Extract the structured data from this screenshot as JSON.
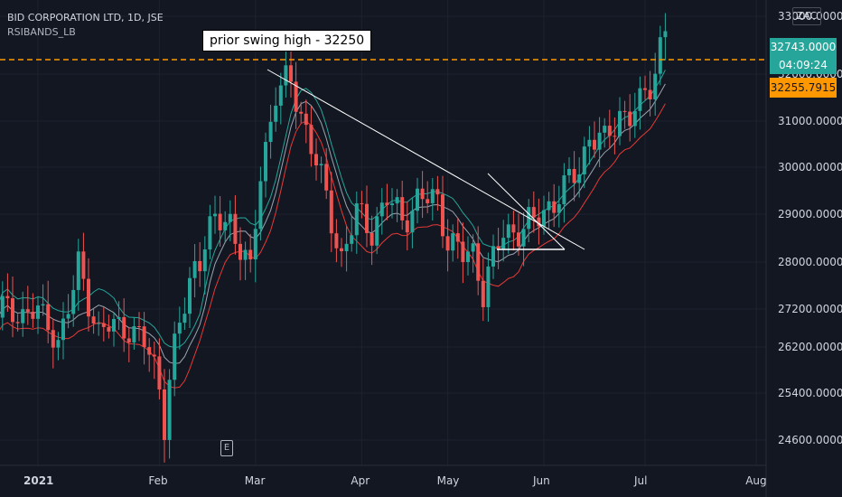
{
  "header": {
    "title": "BID CORPORATION LTD, 1D, JSE",
    "indicator": "RSIBANDS_LB"
  },
  "annotation": {
    "text": "prior swing high - 32250"
  },
  "price_scale": {
    "currency": "ZAC",
    "last_price": "32743.0000",
    "countdown": "04:09:24",
    "level_label": "32255.7915"
  },
  "event_marker": {
    "label": "E"
  },
  "colors": {
    "background": "#131722",
    "up": "#26a69a",
    "down": "#ef5350",
    "band_upper": "#26a69a",
    "band_mid": "#9aa4b0",
    "band_lower": "#e53935",
    "level_line": "#ff9800",
    "trendline": "#ffffff",
    "grid": "#1e222d",
    "axis_text": "#d1d4dc"
  },
  "chart_data": {
    "type": "candlestick",
    "title": "BID CORPORATION LTD, 1D, JSE",
    "y_ticks": [
      24600,
      25400,
      26200,
      27200,
      28000,
      29000,
      30000,
      31000,
      32000,
      33000
    ],
    "y_tick_labels": [
      "24600.0000",
      "25400.0000",
      "26200.0000",
      "27200.0000",
      "28000.0000",
      "29000.0000",
      "30000.0000",
      "31000.0000",
      "32000.0000",
      "33000.0000"
    ],
    "x_ticks": [
      {
        "label": "2021",
        "x": 0
      },
      {
        "label": "Feb",
        "x": 24
      },
      {
        "label": "Mar",
        "x": 43
      },
      {
        "label": "Apr",
        "x": 64
      },
      {
        "label": "May",
        "x": 81
      },
      {
        "label": "Jun",
        "x": 100
      },
      {
        "label": "Jul",
        "x": 120
      },
      {
        "label": "Aug",
        "x": 142
      }
    ],
    "horizontal_level": 32250,
    "close_series_approx": [
      {
        "x": 0,
        "y": 27100
      },
      {
        "x": 4,
        "y": 26400
      },
      {
        "x": 8,
        "y": 27900
      },
      {
        "x": 10,
        "y": 27400
      },
      {
        "x": 12,
        "y": 26600
      },
      {
        "x": 16,
        "y": 26800
      },
      {
        "x": 20,
        "y": 26500
      },
      {
        "x": 24,
        "y": 25600
      },
      {
        "x": 25,
        "y": 25000
      },
      {
        "x": 28,
        "y": 26800
      },
      {
        "x": 31,
        "y": 28000
      },
      {
        "x": 35,
        "y": 28800
      },
      {
        "x": 38,
        "y": 28900
      },
      {
        "x": 42,
        "y": 27700
      },
      {
        "x": 44,
        "y": 29900
      },
      {
        "x": 47,
        "y": 31600
      },
      {
        "x": 50,
        "y": 31800
      },
      {
        "x": 52,
        "y": 31200
      },
      {
        "x": 55,
        "y": 30100
      },
      {
        "x": 58,
        "y": 28900
      },
      {
        "x": 60,
        "y": 28100
      },
      {
        "x": 63,
        "y": 29000
      },
      {
        "x": 66,
        "y": 28700
      },
      {
        "x": 69,
        "y": 29300
      },
      {
        "x": 72,
        "y": 28900
      },
      {
        "x": 75,
        "y": 29300
      },
      {
        "x": 79,
        "y": 29300
      },
      {
        "x": 81,
        "y": 28500
      },
      {
        "x": 84,
        "y": 28100
      },
      {
        "x": 86,
        "y": 28200
      },
      {
        "x": 88,
        "y": 27600
      },
      {
        "x": 90,
        "y": 28000
      },
      {
        "x": 92,
        "y": 28600
      },
      {
        "x": 95,
        "y": 28700
      },
      {
        "x": 98,
        "y": 28800
      },
      {
        "x": 101,
        "y": 29200
      },
      {
        "x": 104,
        "y": 29500
      },
      {
        "x": 107,
        "y": 30000
      },
      {
        "x": 109,
        "y": 30700
      },
      {
        "x": 112,
        "y": 30500
      },
      {
        "x": 115,
        "y": 31200
      },
      {
        "x": 117,
        "y": 31100
      },
      {
        "x": 119,
        "y": 31300
      },
      {
        "x": 121,
        "y": 31800
      },
      {
        "x": 123,
        "y": 32500
      },
      {
        "x": 124,
        "y": 32743
      }
    ]
  }
}
